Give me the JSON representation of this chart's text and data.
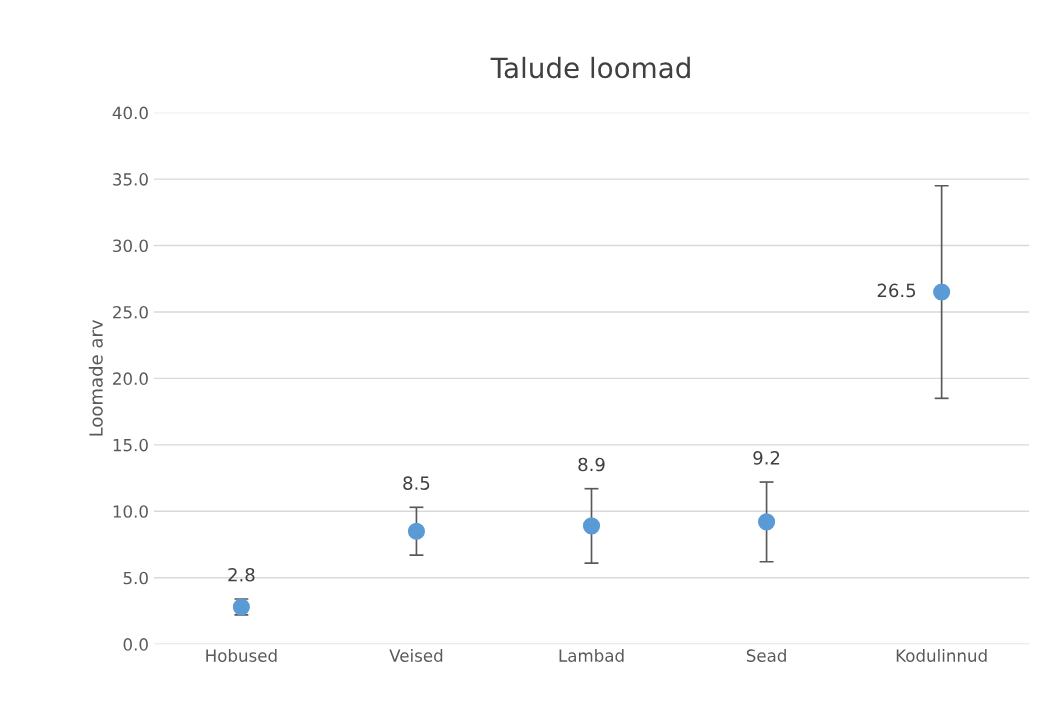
{
  "chart_data": {
    "type": "scatter",
    "title": "Talude loomad",
    "ylabel": "Loomade arv",
    "categories": [
      "Hobused",
      "Veised",
      "Lambad",
      "Sead",
      "Kodulinnud"
    ],
    "values": [
      2.8,
      8.5,
      8.9,
      9.2,
      26.5
    ],
    "errors": [
      0.6,
      1.8,
      2.8,
      3.0,
      8.0
    ],
    "color": "#5b9bd5",
    "marker": "circle",
    "data_labels": true,
    "ylim": [
      0,
      40
    ],
    "yticks": [
      {
        "value": 0,
        "label": "0.0"
      },
      {
        "value": 5,
        "label": "5.0"
      },
      {
        "value": 10,
        "label": "10.0"
      },
      {
        "value": 15,
        "label": "15.0"
      },
      {
        "value": 20,
        "label": "20.0"
      },
      {
        "value": 25,
        "label": "25.0"
      },
      {
        "value": 30,
        "label": "30.0"
      },
      {
        "value": 35,
        "label": "35.0"
      },
      {
        "value": 40,
        "label": "40.0"
      }
    ],
    "grid": "y",
    "legend": false
  }
}
